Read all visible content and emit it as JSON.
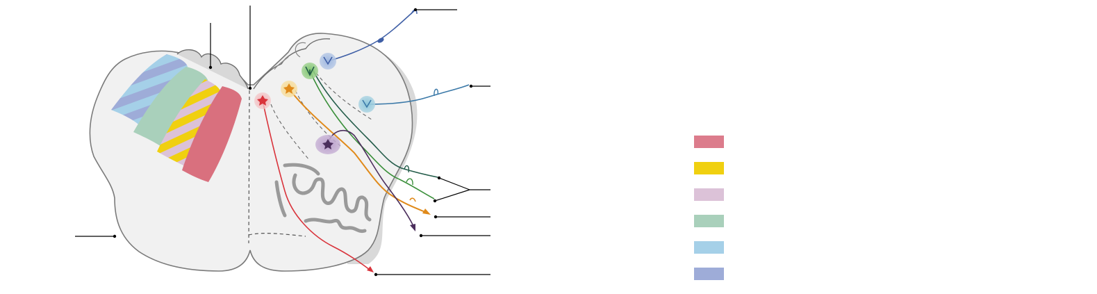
{
  "legend": {
    "items": [
      {
        "name": "red-tract",
        "color": "#dc7c8c",
        "label": ""
      },
      {
        "name": "yellow-tract",
        "color": "#f0d010",
        "label": ""
      },
      {
        "name": "pink-tract",
        "color": "#dcc2d8",
        "label": ""
      },
      {
        "name": "green-tract",
        "color": "#a9d0bb",
        "label": ""
      },
      {
        "name": "light-blue-tract",
        "color": "#a5d0e8",
        "label": ""
      },
      {
        "name": "dark-blue-tract",
        "color": "#9eacd8",
        "label": ""
      }
    ]
  },
  "colors": {
    "red": "#d9333b",
    "orange": "#e08a1a",
    "green": "#3a8f3a",
    "dark_green": "#245c4a",
    "blue": "#3f5fa6",
    "teal_blue": "#3b79a8",
    "purple": "#4b2e5c",
    "outline": "#7a7a7a",
    "fill": "#f1f1f1"
  }
}
